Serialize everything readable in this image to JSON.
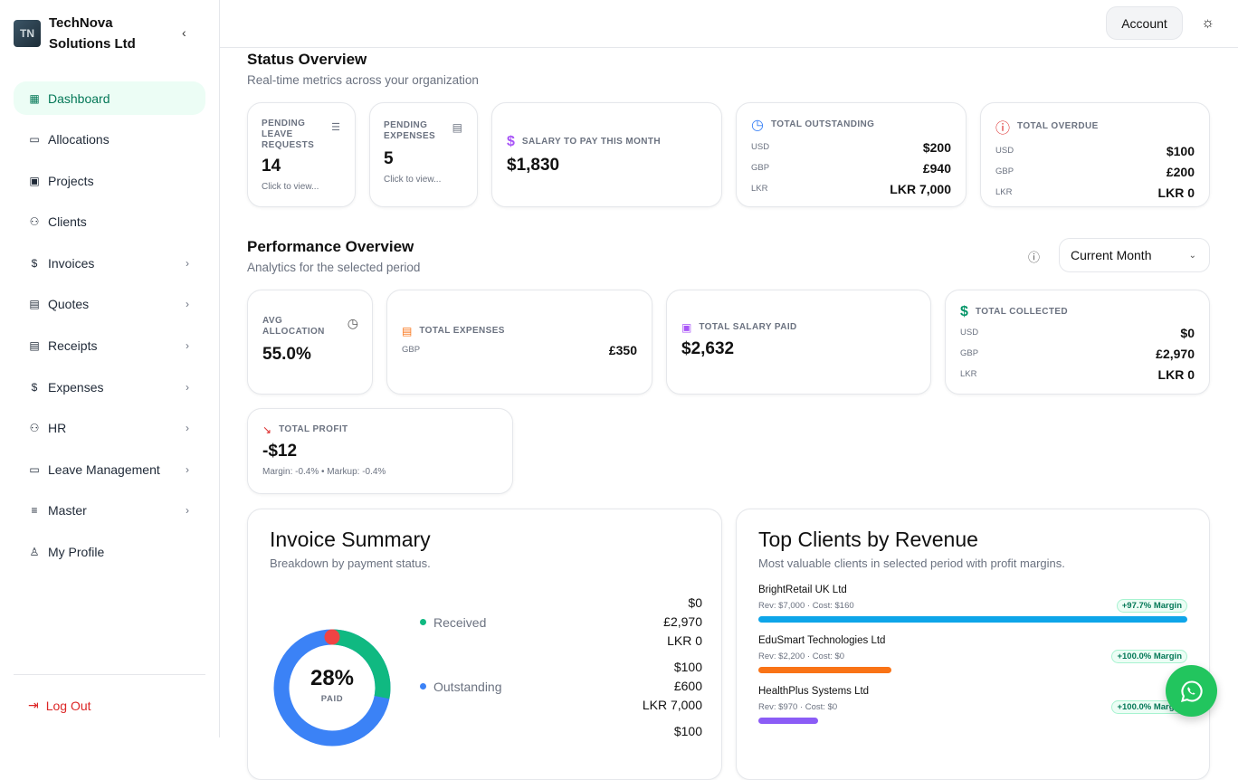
{
  "company": {
    "name": "TechNova Solutions Ltd",
    "logo_text": "TN"
  },
  "sidebar": {
    "items": [
      {
        "label": "Dashboard",
        "icon": "grid-icon",
        "active": true,
        "chevron": false
      },
      {
        "label": "Allocations",
        "icon": "calendar-icon",
        "chevron": false
      },
      {
        "label": "Projects",
        "icon": "briefcase-icon",
        "chevron": false
      },
      {
        "label": "Clients",
        "icon": "users-icon",
        "chevron": false
      },
      {
        "label": "Invoices",
        "icon": "dollar-file-icon",
        "chevron": true
      },
      {
        "label": "Quotes",
        "icon": "file-icon",
        "chevron": true
      },
      {
        "label": "Receipts",
        "icon": "receipt-icon",
        "chevron": true
      },
      {
        "label": "Expenses",
        "icon": "dollar-file-icon",
        "chevron": true
      },
      {
        "label": "HR",
        "icon": "users-icon",
        "chevron": true
      },
      {
        "label": "Leave Management",
        "icon": "calendar-icon",
        "chevron": true
      },
      {
        "label": "Master",
        "icon": "database-icon",
        "chevron": true
      },
      {
        "label": "My Profile",
        "icon": "user-icon",
        "chevron": false
      }
    ],
    "logout": "Log Out"
  },
  "topbar": {
    "account": "Account"
  },
  "status": {
    "title": "Status Overview",
    "subtitle": "Real-time metrics across your organization",
    "leave": {
      "label": "PENDING LEAVE REQUESTS",
      "value": "14",
      "hint": "Click to view..."
    },
    "expenses": {
      "label": "PENDING EXPENSES",
      "value": "5",
      "hint": "Click to view..."
    },
    "salary": {
      "label": "SALARY TO PAY THIS MONTH",
      "value": "$1,830"
    },
    "outstanding": {
      "label": "TOTAL OUTSTANDING",
      "rows": [
        [
          "USD",
          "$200"
        ],
        [
          "GBP",
          "£940"
        ],
        [
          "LKR",
          "LKR 7,000"
        ]
      ]
    },
    "overdue": {
      "label": "TOTAL OVERDUE",
      "rows": [
        [
          "USD",
          "$100"
        ],
        [
          "GBP",
          "£200"
        ],
        [
          "LKR",
          "LKR 0"
        ]
      ]
    }
  },
  "performance": {
    "title": "Performance Overview",
    "subtitle": "Analytics for the selected period",
    "period": "Current Month",
    "avg_alloc": {
      "label": "AVG ALLOCATION",
      "value": "55.0%"
    },
    "expenses": {
      "label": "TOTAL EXPENSES",
      "currency": "GBP",
      "value": "£350"
    },
    "salary": {
      "label": "TOTAL SALARY PAID",
      "value": "$2,632"
    },
    "collected": {
      "label": "TOTAL COLLECTED",
      "rows": [
        [
          "USD",
          "$0"
        ],
        [
          "GBP",
          "£2,970"
        ],
        [
          "LKR",
          "LKR 0"
        ]
      ]
    },
    "profit": {
      "label": "TOTAL PROFIT",
      "value": "-$12",
      "detail": "Margin: -0.4% • Markup: -0.4%"
    }
  },
  "invoice_summary": {
    "title": "Invoice Summary",
    "subtitle": "Breakdown by payment status.",
    "percent": "28%",
    "center_label": "PAID",
    "paid_fraction": 0.28,
    "colors": {
      "received": "#10b981",
      "outstanding": "#3b82f6",
      "overdue": "#ef4444"
    },
    "legend": [
      {
        "label": "Received",
        "color": "#10b981",
        "values": [
          "$0",
          "£2,970",
          "LKR 0"
        ]
      },
      {
        "label": "Outstanding",
        "color": "#3b82f6",
        "values": [
          "$100",
          "£600",
          "LKR 7,000"
        ]
      },
      {
        "label": "",
        "values": [
          "$100"
        ]
      }
    ]
  },
  "top_clients": {
    "title": "Top Clients by Revenue",
    "subtitle": "Most valuable clients in selected period with profit margins.",
    "clients": [
      {
        "name": "BrightRetail UK Ltd",
        "rev": "Rev: $7,000",
        "cost": "Cost: $160",
        "margin": "+97.7% Margin",
        "share": 1.0,
        "color": "#0ea5e9"
      },
      {
        "name": "EduSmart Technologies Ltd",
        "rev": "Rev: $2,200",
        "cost": "Cost: $0",
        "margin": "+100.0% Margin",
        "share": 0.31,
        "color": "#f97316"
      },
      {
        "name": "HealthPlus Systems Ltd",
        "rev": "Rev: $970",
        "cost": "Cost: $0",
        "margin": "+100.0% Margin",
        "share": 0.14,
        "color": "#8b5cf6"
      }
    ]
  }
}
